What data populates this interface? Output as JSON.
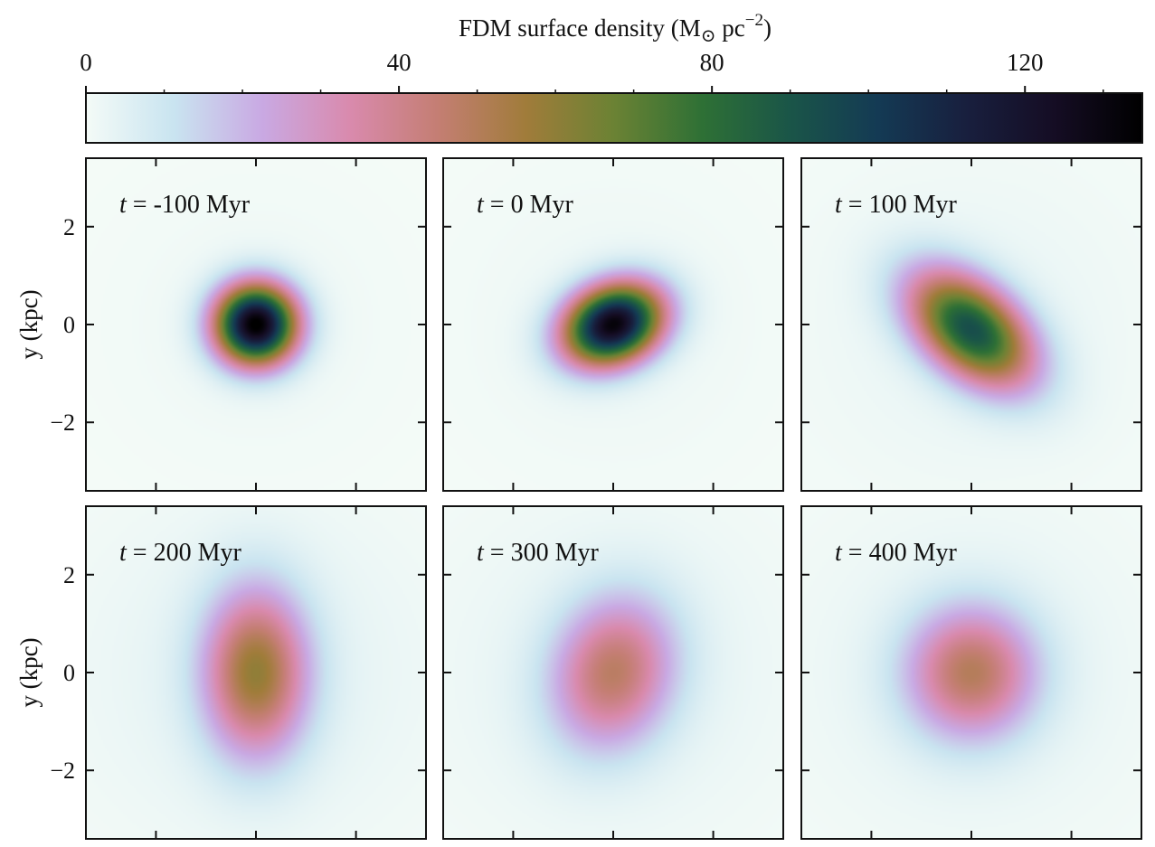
{
  "chart_data": {
    "type": "heatmap",
    "colorbar": {
      "label_prefix": "FDM surface density (M",
      "label_sun": "⊙",
      "label_unit": " pc",
      "label_exp": "−2",
      "label_close": ")",
      "min": 0,
      "max": 135,
      "ticks": [
        0,
        40,
        80,
        120
      ],
      "tick_labels": [
        "0",
        "40",
        "80",
        "120"
      ],
      "colormap": [
        "#f4fbf7",
        "#c9e4f0",
        "#c9a9e3",
        "#d98aad",
        "#c47e73",
        "#a07c3a",
        "#6b8234",
        "#2e7035",
        "#1a5548",
        "#143a54",
        "#181f3e",
        "#150d24",
        "#000000"
      ]
    },
    "ylabel": "y (kpc)",
    "ylim": [
      -3.4,
      3.4
    ],
    "xlim": [
      -3.4,
      3.4
    ],
    "y_ticks": [
      2,
      0,
      -2
    ],
    "y_tick_labels": [
      "2",
      "0",
      "−2"
    ],
    "x_ticks": [
      -2,
      0,
      2
    ],
    "panels": [
      {
        "t_var": "t",
        "label": " = -100 Myr",
        "peak": 135,
        "cx": 0.0,
        "cy": 0.0,
        "sx": 0.78,
        "sy": 0.78,
        "angle": 0,
        "halo_amp": 1.6,
        "halo_scale": 2.6
      },
      {
        "t_var": "t",
        "label": " = 0 Myr",
        "peak": 130,
        "cx": 0.0,
        "cy": 0.0,
        "sx": 0.98,
        "sy": 0.74,
        "angle": 25,
        "halo_amp": 2.0,
        "halo_scale": 2.8
      },
      {
        "t_var": "t",
        "label": " = 100 Myr",
        "peak": 90,
        "cx": 0.0,
        "cy": -0.1,
        "sx": 1.4,
        "sy": 0.85,
        "angle": -42,
        "halo_amp": 3.0,
        "halo_scale": 3.2
      },
      {
        "t_var": "t",
        "label": " = 200 Myr",
        "peak": 55,
        "cx": 0.0,
        "cy": 0.0,
        "sx": 1.0,
        "sy": 1.65,
        "angle": 0,
        "halo_amp": 4.5,
        "halo_scale": 3.4
      },
      {
        "t_var": "t",
        "label": " = 300 Myr",
        "peak": 44,
        "cx": 0.0,
        "cy": 0.0,
        "sx": 1.15,
        "sy": 1.5,
        "angle": -15,
        "halo_amp": 4.0,
        "halo_scale": 3.4
      },
      {
        "t_var": "t",
        "label": " = 400 Myr",
        "peak": 46,
        "cx": 0.0,
        "cy": 0.0,
        "sx": 1.25,
        "sy": 1.3,
        "angle": 0,
        "halo_amp": 3.8,
        "halo_scale": 3.4
      }
    ]
  }
}
